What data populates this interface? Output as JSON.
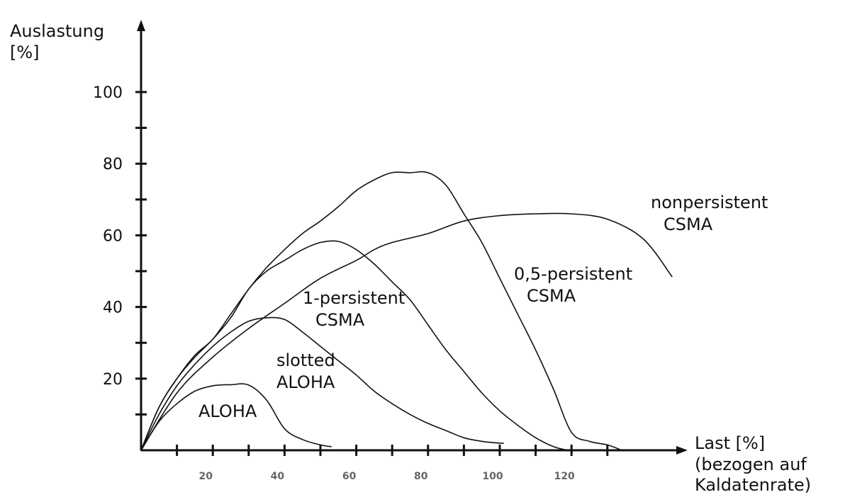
{
  "chart_data": {
    "type": "line",
    "ylabel_lines": [
      "Auslastung",
      "[%]"
    ],
    "xlabel_lines": [
      "Last [%]",
      "(bezogen auf",
      "Kaldatenrate)"
    ],
    "xlim": [
      0,
      150
    ],
    "ylim": [
      0,
      100
    ],
    "y_ticks": [
      20,
      40,
      60,
      80,
      100
    ],
    "y_minor_ticks": [
      10,
      30,
      50,
      70,
      90
    ],
    "x_ticks": [
      20,
      40,
      60,
      80,
      100,
      120
    ],
    "x_minor_ticks": [
      10,
      30,
      50,
      70,
      90,
      110,
      130
    ],
    "grid": false,
    "legend": "none",
    "series": [
      {
        "name": "ALOHA",
        "label_lines": [
          "ALOHA"
        ],
        "x": [
          0,
          5,
          10,
          15,
          20,
          25,
          30,
          35,
          40,
          45,
          50,
          53
        ],
        "y": [
          0,
          8,
          13,
          16.5,
          18,
          18.3,
          18.2,
          14,
          6,
          3,
          1.5,
          1
        ]
      },
      {
        "name": "slotted ALOHA",
        "label_lines": [
          "slotted",
          "ALOHA"
        ],
        "x": [
          0,
          5,
          10,
          15,
          20,
          25,
          30,
          35,
          40,
          45,
          50,
          55,
          60,
          65,
          70,
          75,
          80,
          85,
          90,
          95,
          100,
          101
        ],
        "y": [
          0,
          10,
          18,
          24,
          29,
          33,
          36,
          37,
          36.5,
          33,
          29,
          25,
          21,
          16.5,
          13,
          10,
          7.5,
          5.5,
          3.5,
          2.5,
          2,
          2
        ]
      },
      {
        "name": "1-persistent CSMA",
        "label_lines": [
          "1-persistent",
          "CSMA"
        ],
        "x": [
          0,
          5,
          10,
          15,
          20,
          25,
          30,
          35,
          40,
          45,
          50,
          55,
          60,
          65,
          70,
          75,
          80,
          85,
          90,
          95,
          100,
          105,
          110,
          115,
          119
        ],
        "y": [
          0,
          12,
          20,
          26,
          31,
          37,
          45,
          50,
          53,
          56,
          58,
          58.3,
          56,
          52,
          47,
          42,
          35,
          28,
          22,
          16,
          11,
          7,
          3.5,
          1,
          0
        ]
      },
      {
        "name": "0,5-persistent CSMA",
        "label_lines": [
          "0,5-persistent",
          "CSMA"
        ],
        "x": [
          0,
          5,
          10,
          15,
          20,
          25,
          30,
          35,
          40,
          45,
          50,
          55,
          60,
          65,
          70,
          75,
          80,
          85,
          90,
          95,
          100,
          105,
          110,
          115,
          120,
          125,
          130,
          134
        ],
        "y": [
          0,
          12,
          20,
          26.5,
          31,
          38,
          45,
          51,
          56,
          60.5,
          64,
          68,
          72.5,
          75.5,
          77.5,
          77.5,
          77.5,
          74,
          66,
          58,
          48,
          38,
          28,
          17,
          5,
          2.5,
          1.5,
          0
        ]
      },
      {
        "name": "nonpersistent CSMA",
        "label_lines": [
          "nonpersistent",
          "CSMA"
        ],
        "x": [
          0,
          10,
          20,
          30,
          40,
          50,
          60,
          65,
          70,
          80,
          90,
          100,
          110,
          120,
          130,
          140,
          148
        ],
        "y": [
          0,
          16,
          26,
          34,
          41,
          48,
          53,
          56,
          58,
          60.5,
          64,
          65.5,
          66,
          66,
          64.5,
          59,
          48.5
        ]
      }
    ]
  }
}
